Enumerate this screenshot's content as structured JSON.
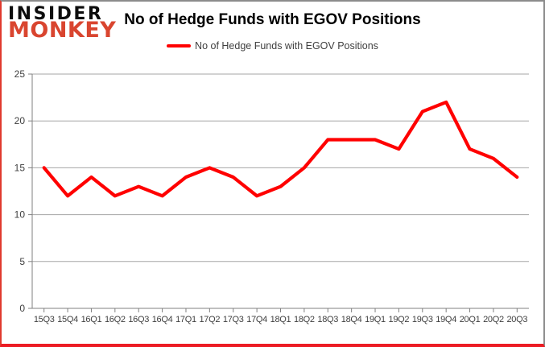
{
  "logo": {
    "line1": "INSIDER",
    "line2": "MONKEY"
  },
  "header": {
    "title": "No of Hedge Funds with EGOV Positions"
  },
  "legend": {
    "label": "No of Hedge Funds with EGOV Positions"
  },
  "colors": {
    "series": "#ff0000",
    "logo_black": "#0d0d0d",
    "logo_red": "#d9452f",
    "grid": "#a6a6a6",
    "axis": "#808080",
    "tick_label": "#3f3f3f",
    "frame_red": "#ec1c24"
  },
  "chart_data": {
    "type": "line",
    "title": "No of Hedge Funds with EGOV Positions",
    "xlabel": "",
    "ylabel": "",
    "categories": [
      "15Q3",
      "15Q4",
      "16Q1",
      "16Q2",
      "16Q3",
      "16Q4",
      "17Q1",
      "17Q2",
      "17Q3",
      "17Q4",
      "18Q1",
      "18Q2",
      "18Q3",
      "18Q4",
      "19Q1",
      "19Q2",
      "19Q3",
      "19Q4",
      "20Q1",
      "20Q2",
      "20Q3"
    ],
    "series": [
      {
        "name": "No of Hedge Funds with EGOV Positions",
        "values": [
          15,
          12,
          14,
          12,
          13,
          12,
          14,
          15,
          14,
          12,
          13,
          15,
          18,
          18,
          18,
          17,
          21,
          22,
          17,
          16,
          14
        ]
      }
    ],
    "ylim": [
      0,
      25
    ],
    "yticks": [
      0,
      5,
      10,
      15,
      20,
      25
    ],
    "grid": true,
    "legend_position": "top"
  }
}
